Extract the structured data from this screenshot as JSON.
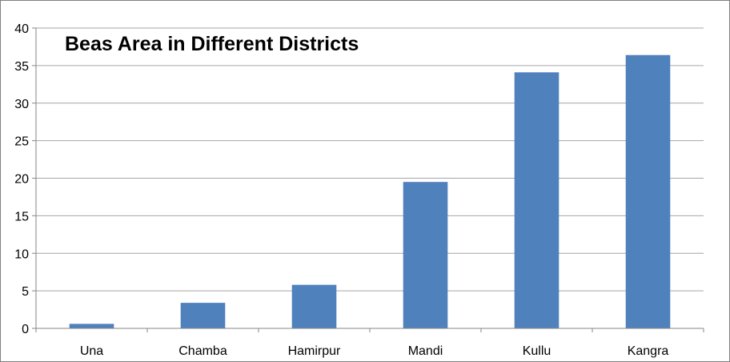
{
  "chart_data": {
    "type": "bar",
    "title": "Beas Area in Different Districts",
    "xlabel": "",
    "ylabel": "",
    "categories": [
      "Una",
      "Chamba",
      "Hamirpur",
      "Mandi",
      "Kullu",
      "Kangra"
    ],
    "values": [
      0.6,
      3.4,
      5.8,
      19.5,
      34.1,
      36.4
    ],
    "ylim": [
      0,
      40
    ],
    "yticks": [
      "0",
      "5",
      "10",
      "15",
      "20",
      "25",
      "30",
      "35",
      "40"
    ],
    "grid": true,
    "legend": "none",
    "bar_color": "#4f81bd",
    "grid_color": "#a6a6a6",
    "axis_color": "#868686"
  }
}
